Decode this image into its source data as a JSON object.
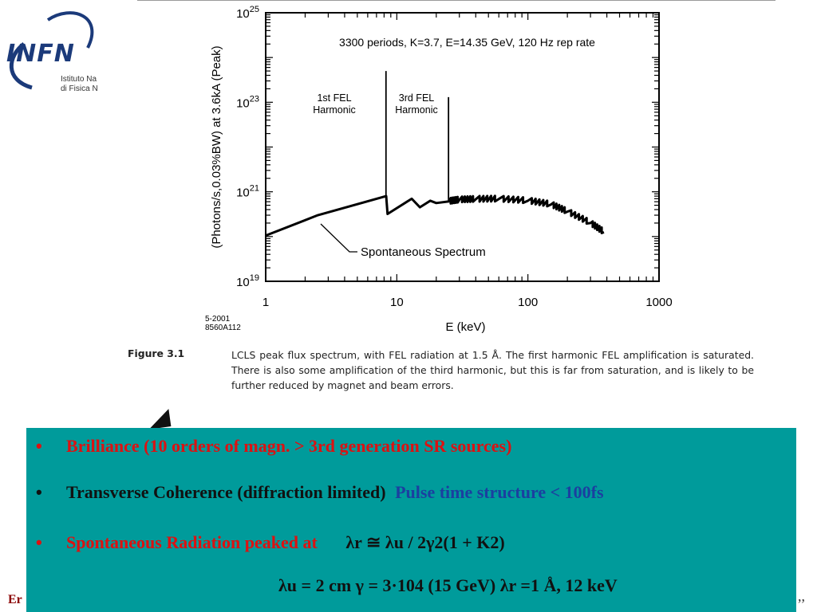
{
  "logo": {
    "text": "INFN",
    "sub1": "Istituto Na",
    "sub2": "di Fisica N"
  },
  "chart_data": {
    "type": "line",
    "title": "3300 periods, K=3.7, E=14.35 GeV, 120 Hz rep rate",
    "xlabel": "E  (keV)",
    "ylabel": "(Photons/s,0.03%BW) at 3.6kA  (Peak)",
    "xscale": "log",
    "yscale": "log",
    "xlim": [
      1,
      1000
    ],
    "ylim": [
      1e+19,
      1e+25
    ],
    "x_ticks": [
      "1",
      "10",
      "100",
      "1000"
    ],
    "y_ticks": [
      "10^19",
      "10^21",
      "10^23",
      "10^25"
    ],
    "grid": false,
    "legend": "none",
    "series": [
      {
        "x": [
          1,
          2.5,
          8.3,
          8.5,
          13,
          15,
          18,
          20,
          25,
          30,
          40,
          60,
          100,
          150,
          200,
          300,
          380
        ],
        "y": [
          1.05e+20,
          3e+20,
          8e+20,
          3.2e+20,
          7e+20,
          4.5e+20,
          6.3e+20,
          5.6e+20,
          6.1e+20,
          6.6e+20,
          6.8e+20,
          6.9e+20,
          6.3e+20,
          5.2e+20,
          3.6e+20,
          2e+20,
          1.25e+20
        ]
      }
    ],
    "peaks": [
      {
        "label": "1st FEL Harmonic",
        "x": 8.27,
        "y": 5e+23
      },
      {
        "label": "3rd FEL Harmonic",
        "x": 24.8,
        "y": 1.3e+23
      }
    ],
    "annotations": {
      "harm1_line1": "1st FEL",
      "harm1_line2": "Harmonic",
      "harm3_line1": "3rd FEL",
      "harm3_line2": "Harmonic",
      "spontaneous": "Spontaneous Spectrum",
      "code1": "5-2001",
      "code2": "8560A112"
    }
  },
  "caption": {
    "figure": "Figure 3.1",
    "text": "LCLS peak flux spectrum, with FEL radiation at 1.5 Å. The first harmonic FEL amplification is saturated. There is also some amplification of the third harmonic, but this is far from saturation, and is likely to be further reduced by magnet and beam errors."
  },
  "bullets": {
    "b1": "Brilliance (10 orders of magn. >  3rd generation SR sources)",
    "b2a": "Transverse Coherence (diffraction limited)",
    "b2b": "Pulse time structure   <  100fs",
    "b3a": "Spontaneous  Radiation peaked at",
    "b3b": "λr ≅  λu / 2γ2(1 + K2)",
    "b4": "λu = 2 cm    γ = 3·104  (15 GeV)  λr =1 Å, 12 keV"
  },
  "footer": {
    "left": "Er",
    "right": ",,"
  },
  "colors": {
    "box": "#009b9b",
    "red": "#dd1111",
    "blue": "#1b3fa0"
  }
}
